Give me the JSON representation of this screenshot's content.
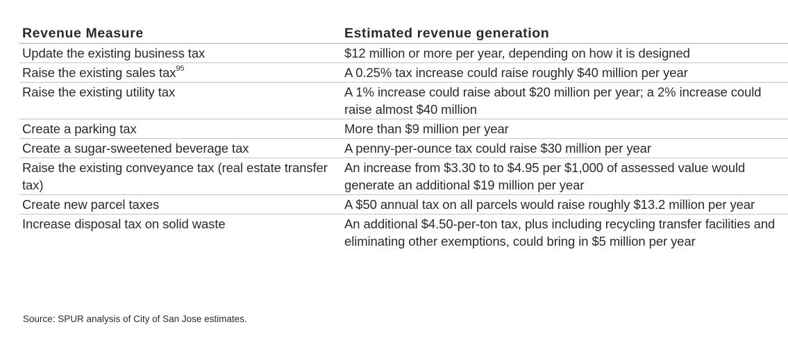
{
  "table": {
    "headers": {
      "measure": "Revenue Measure",
      "estimate": "Estimated revenue generation"
    },
    "rows": [
      {
        "measure": "Update the existing business tax",
        "footnote": "",
        "estimate": "$12 million or more per year, depending on how it is designed"
      },
      {
        "measure": "Raise the existing sales tax",
        "footnote": "95",
        "estimate": "A 0.25% tax increase could raise roughly $40 million per year"
      },
      {
        "measure": "Raise the existing utility tax",
        "footnote": "",
        "estimate": "A 1% increase could raise about $20 million per year; a 2% increase could raise almost $40 million"
      },
      {
        "measure": "Create a parking tax",
        "footnote": "",
        "estimate": "More than $9 million per year"
      },
      {
        "measure": "Create a sugar-sweetened beverage tax",
        "footnote": "",
        "estimate": "A penny-per-ounce tax could raise $30 million per year"
      },
      {
        "measure": "Raise the existing conveyance tax (real estate transfer tax)",
        "footnote": "",
        "estimate": "An increase from $3.30 to to $4.95 per $1,000 of assessed value would generate an additional $19 million per year"
      },
      {
        "measure": "Create new parcel taxes",
        "footnote": "",
        "estimate": "A $50 annual tax on all parcels would raise roughly $13.2 million per year"
      },
      {
        "measure": "Increase disposal tax on solid waste",
        "footnote": "",
        "estimate": "An additional $4.50-per-ton tax, plus including recycling transfer facilities and eliminating other exemptions, could bring in $5 million per year"
      }
    ]
  },
  "source": "Source: SPUR analysis of City of San Jose estimates."
}
